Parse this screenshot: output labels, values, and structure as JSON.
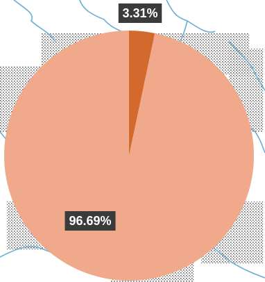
{
  "chart_data": {
    "type": "pie",
    "categories": [
      "",
      ""
    ],
    "values": [
      3.31,
      96.69
    ],
    "data_labels": [
      "3.31%",
      "96.69%"
    ],
    "colors": [
      "#d4692e",
      "#f0a98a"
    ],
    "title": "",
    "legend": "none"
  },
  "colors": {
    "map_background": "#ffffff",
    "river_lines": "#6aaed6",
    "stipple_dots": "#2a2a2a",
    "label_box": "#3b3b3b",
    "label_text": "#ffffff"
  }
}
